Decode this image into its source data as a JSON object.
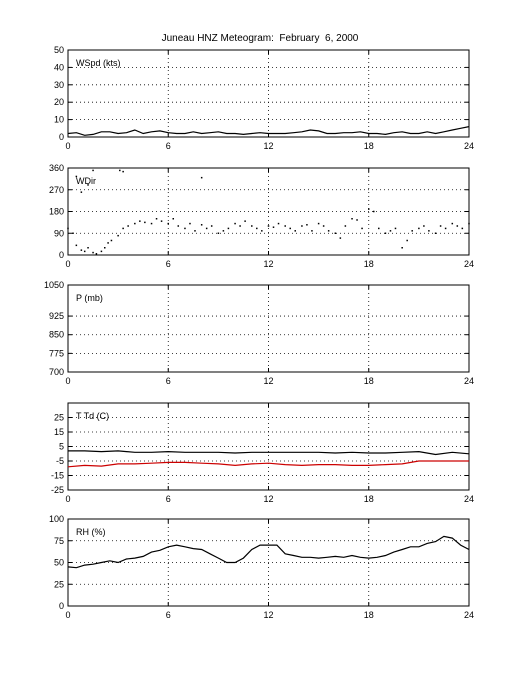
{
  "chart_data": [
    {
      "type": "line",
      "title": "Juneau HNZ Meteogram:  February  6, 2000",
      "label": "WSpd (kts)",
      "ylim": [
        0,
        50
      ],
      "yticks": [
        "0",
        "10",
        "20",
        "30",
        "40",
        "50"
      ],
      "xlim": [
        0,
        24
      ],
      "xticks": [
        "0",
        "6",
        "12",
        "18",
        "24"
      ],
      "grid": true,
      "series": [
        {
          "color": "#000000",
          "style": "line",
          "x": [
            0,
            0.5,
            1,
            1.5,
            2,
            2.5,
            3,
            3.5,
            4,
            4.5,
            5,
            5.5,
            6,
            6.5,
            7,
            7.5,
            8,
            8.5,
            9,
            9.5,
            10,
            10.5,
            11,
            11.5,
            12,
            12.5,
            13,
            13.5,
            14,
            14.5,
            15,
            15.5,
            16,
            16.5,
            17,
            17.5,
            18,
            18.5,
            19,
            19.5,
            20,
            20.5,
            21,
            21.5,
            22,
            22.5,
            23,
            23.5,
            24
          ],
          "y": [
            2,
            2.5,
            1,
            1.5,
            3,
            3,
            2,
            2.5,
            4,
            2,
            3,
            3.5,
            2.5,
            2,
            2,
            3,
            2,
            2.5,
            3,
            2,
            2,
            1.5,
            2,
            2.5,
            2,
            2,
            2,
            2.5,
            3,
            4,
            3.5,
            2,
            2,
            2.5,
            2.5,
            3,
            2,
            2,
            1.5,
            2.5,
            3,
            2,
            2,
            3,
            2,
            3,
            4,
            5,
            6
          ]
        }
      ]
    },
    {
      "type": "scatter",
      "label": "WDir",
      "ylim": [
        0,
        360
      ],
      "yticks": [
        "0",
        "90",
        "180",
        "270",
        "360"
      ],
      "xlim": [
        0,
        24
      ],
      "xticks": [
        "0",
        "6",
        "12",
        "18",
        "24"
      ],
      "grid": true,
      "series": [
        {
          "color": "#000000",
          "style": "dots",
          "x": [
            0,
            0.3,
            0.5,
            0.8,
            1,
            1.2,
            1.5,
            1.7,
            2,
            2.2,
            2.4,
            2.6,
            3,
            3.3,
            3.6,
            4,
            4.3,
            4.6,
            5,
            5.3,
            5.6,
            6,
            6.3,
            6.6,
            7,
            7.3,
            7.6,
            8,
            8.3,
            8.6,
            9,
            9.3,
            9.6,
            10,
            10.3,
            10.6,
            11,
            11.3,
            11.6,
            12,
            12.3,
            12.6,
            13,
            13.3,
            13.6,
            14,
            14.3,
            14.6,
            15,
            15.3,
            15.6,
            16,
            16.3,
            16.6,
            17,
            17.3,
            17.6,
            18,
            18.3,
            18.6,
            19,
            19.3,
            19.6,
            20,
            20.3,
            20.6,
            21,
            21.3,
            21.6,
            22,
            22.3,
            22.6,
            23,
            23.3,
            23.6,
            24,
            0.5,
            0.8,
            1.2,
            1.5,
            3.1,
            3.3,
            8
          ],
          "y": [
            110,
            90,
            40,
            20,
            15,
            30,
            10,
            5,
            15,
            30,
            50,
            60,
            80,
            110,
            120,
            130,
            140,
            135,
            130,
            150,
            140,
            130,
            150,
            120,
            110,
            130,
            100,
            125,
            110,
            120,
            90,
            100,
            110,
            130,
            120,
            140,
            120,
            110,
            100,
            120,
            115,
            130,
            120,
            110,
            100,
            120,
            125,
            100,
            130,
            120,
            100,
            90,
            70,
            120,
            150,
            145,
            110,
            190,
            180,
            110,
            90,
            100,
            110,
            30,
            60,
            100,
            110,
            120,
            100,
            90,
            120,
            110,
            130,
            120,
            110,
            130,
            325,
            260,
            290,
            350,
            350,
            345,
            320
          ]
        }
      ]
    },
    {
      "type": "line",
      "label": "P (mb)",
      "ylim": [
        700,
        1050
      ],
      "yticks": [
        "700",
        "775",
        "850",
        "925",
        "1050"
      ],
      "yticks_values": [
        700,
        775,
        850,
        925,
        1050
      ],
      "xlim": [
        0,
        24
      ],
      "xticks": [
        "0",
        "6",
        "12",
        "18",
        "24"
      ],
      "grid": true,
      "series": []
    },
    {
      "type": "line",
      "label": "T Td (C)",
      "ylim": [
        -25,
        35
      ],
      "yticks": [
        "-25",
        "-15",
        "-5",
        "5",
        "15",
        "25"
      ],
      "yticks_values": [
        -25,
        -15,
        -5,
        5,
        15,
        25
      ],
      "xlim": [
        0,
        24
      ],
      "xticks": [
        "0",
        "6",
        "12",
        "18",
        "24"
      ],
      "grid": true,
      "series": [
        {
          "color": "#000000",
          "style": "line",
          "x": [
            0,
            1,
            2,
            3,
            4,
            5,
            6,
            7,
            8,
            9,
            10,
            11,
            12,
            13,
            14,
            15,
            16,
            17,
            18,
            19,
            20,
            21,
            22,
            23,
            24
          ],
          "y": [
            2,
            2,
            1.5,
            2,
            1,
            1,
            1.5,
            1,
            1,
            1,
            0.5,
            1,
            1,
            1,
            1,
            1,
            0.5,
            1,
            0.5,
            0.5,
            1,
            1.5,
            -0.5,
            1,
            0
          ]
        },
        {
          "color": "#cc0000",
          "style": "line",
          "x": [
            0,
            1,
            2,
            3,
            4,
            5,
            6,
            7,
            8,
            9,
            10,
            11,
            12,
            13,
            14,
            15,
            16,
            17,
            18,
            19,
            20,
            21,
            22,
            23,
            24
          ],
          "y": [
            -9,
            -8,
            -8.5,
            -7,
            -7,
            -6.5,
            -6,
            -6,
            -6.5,
            -7,
            -8,
            -7,
            -6.5,
            -7.5,
            -8,
            -7.5,
            -7.5,
            -8,
            -8,
            -7.5,
            -7,
            -5,
            -5,
            -5,
            -5
          ]
        }
      ]
    },
    {
      "type": "line",
      "label": "RH (%)",
      "ylim": [
        0,
        100
      ],
      "yticks": [
        "0",
        "25",
        "50",
        "75",
        "100"
      ],
      "xlim": [
        0,
        24
      ],
      "xticks": [
        "0",
        "6",
        "12",
        "18",
        "24"
      ],
      "grid": true,
      "series": [
        {
          "color": "#000000",
          "style": "line",
          "x": [
            0,
            0.5,
            1,
            1.5,
            2,
            2.5,
            3,
            3.5,
            4,
            4.5,
            5,
            5.5,
            6,
            6.5,
            7,
            7.5,
            8,
            8.5,
            9,
            9.5,
            10,
            10.5,
            11,
            11.5,
            12,
            12.5,
            13,
            13.5,
            14,
            14.5,
            15,
            15.5,
            16,
            16.5,
            17,
            17.5,
            18,
            18.5,
            19,
            19.5,
            20,
            20.5,
            21,
            21.5,
            22,
            22.5,
            23,
            23.5,
            24
          ],
          "y": [
            45,
            44,
            47,
            48,
            50,
            52,
            50,
            54,
            55,
            57,
            62,
            64,
            68,
            70,
            68,
            66,
            65,
            60,
            55,
            50,
            50,
            55,
            65,
            70,
            70,
            70,
            60,
            58,
            56,
            56,
            55,
            56,
            57,
            56,
            58,
            56,
            55,
            56,
            58,
            62,
            65,
            68,
            68,
            72,
            74,
            80,
            78,
            70,
            65
          ]
        }
      ]
    }
  ]
}
